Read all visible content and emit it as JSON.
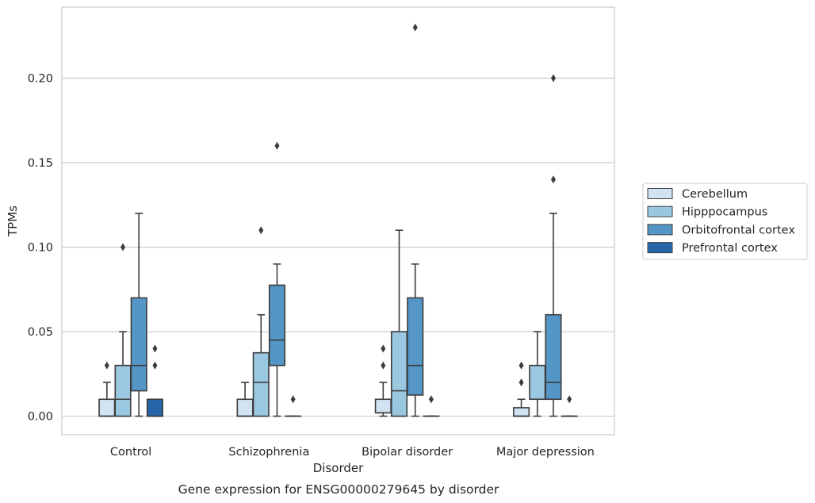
{
  "chart_data": {
    "type": "box",
    "title": "Gene expression for ENSG00000279645 by disorder",
    "xlabel": "Disorder",
    "ylabel": "TPMs",
    "ylim": [
      -0.011,
      0.242
    ],
    "yticks": [
      0.0,
      0.05,
      0.1,
      0.15,
      0.2
    ],
    "ytick_labels": [
      "0.00",
      "0.05",
      "0.10",
      "0.15",
      "0.20"
    ],
    "grid": true,
    "legend_position": "right",
    "categories": [
      "Control",
      "Schizophrenia",
      "Bipolar disorder",
      "Major depression"
    ],
    "series": [
      {
        "name": "Cerebellum",
        "color": "#d1e2f2",
        "boxes": [
          {
            "q1": 0.0,
            "median": 0.0,
            "q3": 0.01,
            "whislo": 0.0,
            "whishi": 0.02,
            "fliers": [
              0.03
            ]
          },
          {
            "q1": 0.0,
            "median": 0.0,
            "q3": 0.01,
            "whislo": 0.0,
            "whishi": 0.02,
            "fliers": []
          },
          {
            "q1": 0.002,
            "median": 0.002,
            "q3": 0.01,
            "whislo": 0.0,
            "whishi": 0.02,
            "fliers": [
              0.03,
              0.04
            ]
          },
          {
            "q1": 0.0,
            "median": 0.0,
            "q3": 0.005,
            "whislo": 0.0,
            "whishi": 0.01,
            "fliers": [
              0.02,
              0.03
            ]
          }
        ]
      },
      {
        "name": "Hipppocampus",
        "color": "#9ac8e0",
        "boxes": [
          {
            "q1": 0.0,
            "median": 0.01,
            "q3": 0.03,
            "whislo": 0.0,
            "whishi": 0.05,
            "fliers": [
              0.1
            ]
          },
          {
            "q1": 0.0,
            "median": 0.02,
            "q3": 0.0375,
            "whislo": 0.0,
            "whishi": 0.06,
            "fliers": [
              0.11
            ]
          },
          {
            "q1": 0.0,
            "median": 0.015,
            "q3": 0.05,
            "whislo": 0.0,
            "whishi": 0.11,
            "fliers": []
          },
          {
            "q1": 0.01,
            "median": 0.01,
            "q3": 0.03,
            "whislo": 0.0,
            "whishi": 0.05,
            "fliers": []
          }
        ]
      },
      {
        "name": "Orbitofrontal cortex",
        "color": "#5496c6",
        "boxes": [
          {
            "q1": 0.015,
            "median": 0.03,
            "q3": 0.07,
            "whislo": 0.0,
            "whishi": 0.12,
            "fliers": []
          },
          {
            "q1": 0.03,
            "median": 0.045,
            "q3": 0.0775,
            "whislo": 0.0,
            "whishi": 0.09,
            "fliers": [
              0.16
            ]
          },
          {
            "q1": 0.0125,
            "median": 0.03,
            "q3": 0.07,
            "whislo": 0.0,
            "whishi": 0.09,
            "fliers": [
              0.23
            ]
          },
          {
            "q1": 0.01,
            "median": 0.02,
            "q3": 0.06,
            "whislo": 0.0,
            "whishi": 0.12,
            "fliers": [
              0.14,
              0.2
            ]
          }
        ]
      },
      {
        "name": "Prefrontal cortex",
        "color": "#2666a8",
        "boxes": [
          {
            "q1": 0.0,
            "median": 0.0,
            "q3": 0.01,
            "whislo": 0.0,
            "whishi": 0.01,
            "fliers": [
              0.03,
              0.04
            ]
          },
          {
            "q1": 0.0,
            "median": 0.0,
            "q3": 0.0,
            "whislo": 0.0,
            "whishi": 0.0,
            "fliers": [
              0.01
            ]
          },
          {
            "q1": 0.0,
            "median": 0.0,
            "q3": 0.0,
            "whislo": 0.0,
            "whishi": 0.0,
            "fliers": [
              0.01
            ]
          },
          {
            "q1": 0.0,
            "median": 0.0,
            "q3": 0.0,
            "whislo": 0.0,
            "whishi": 0.0,
            "fliers": [
              0.01
            ]
          }
        ]
      }
    ]
  }
}
